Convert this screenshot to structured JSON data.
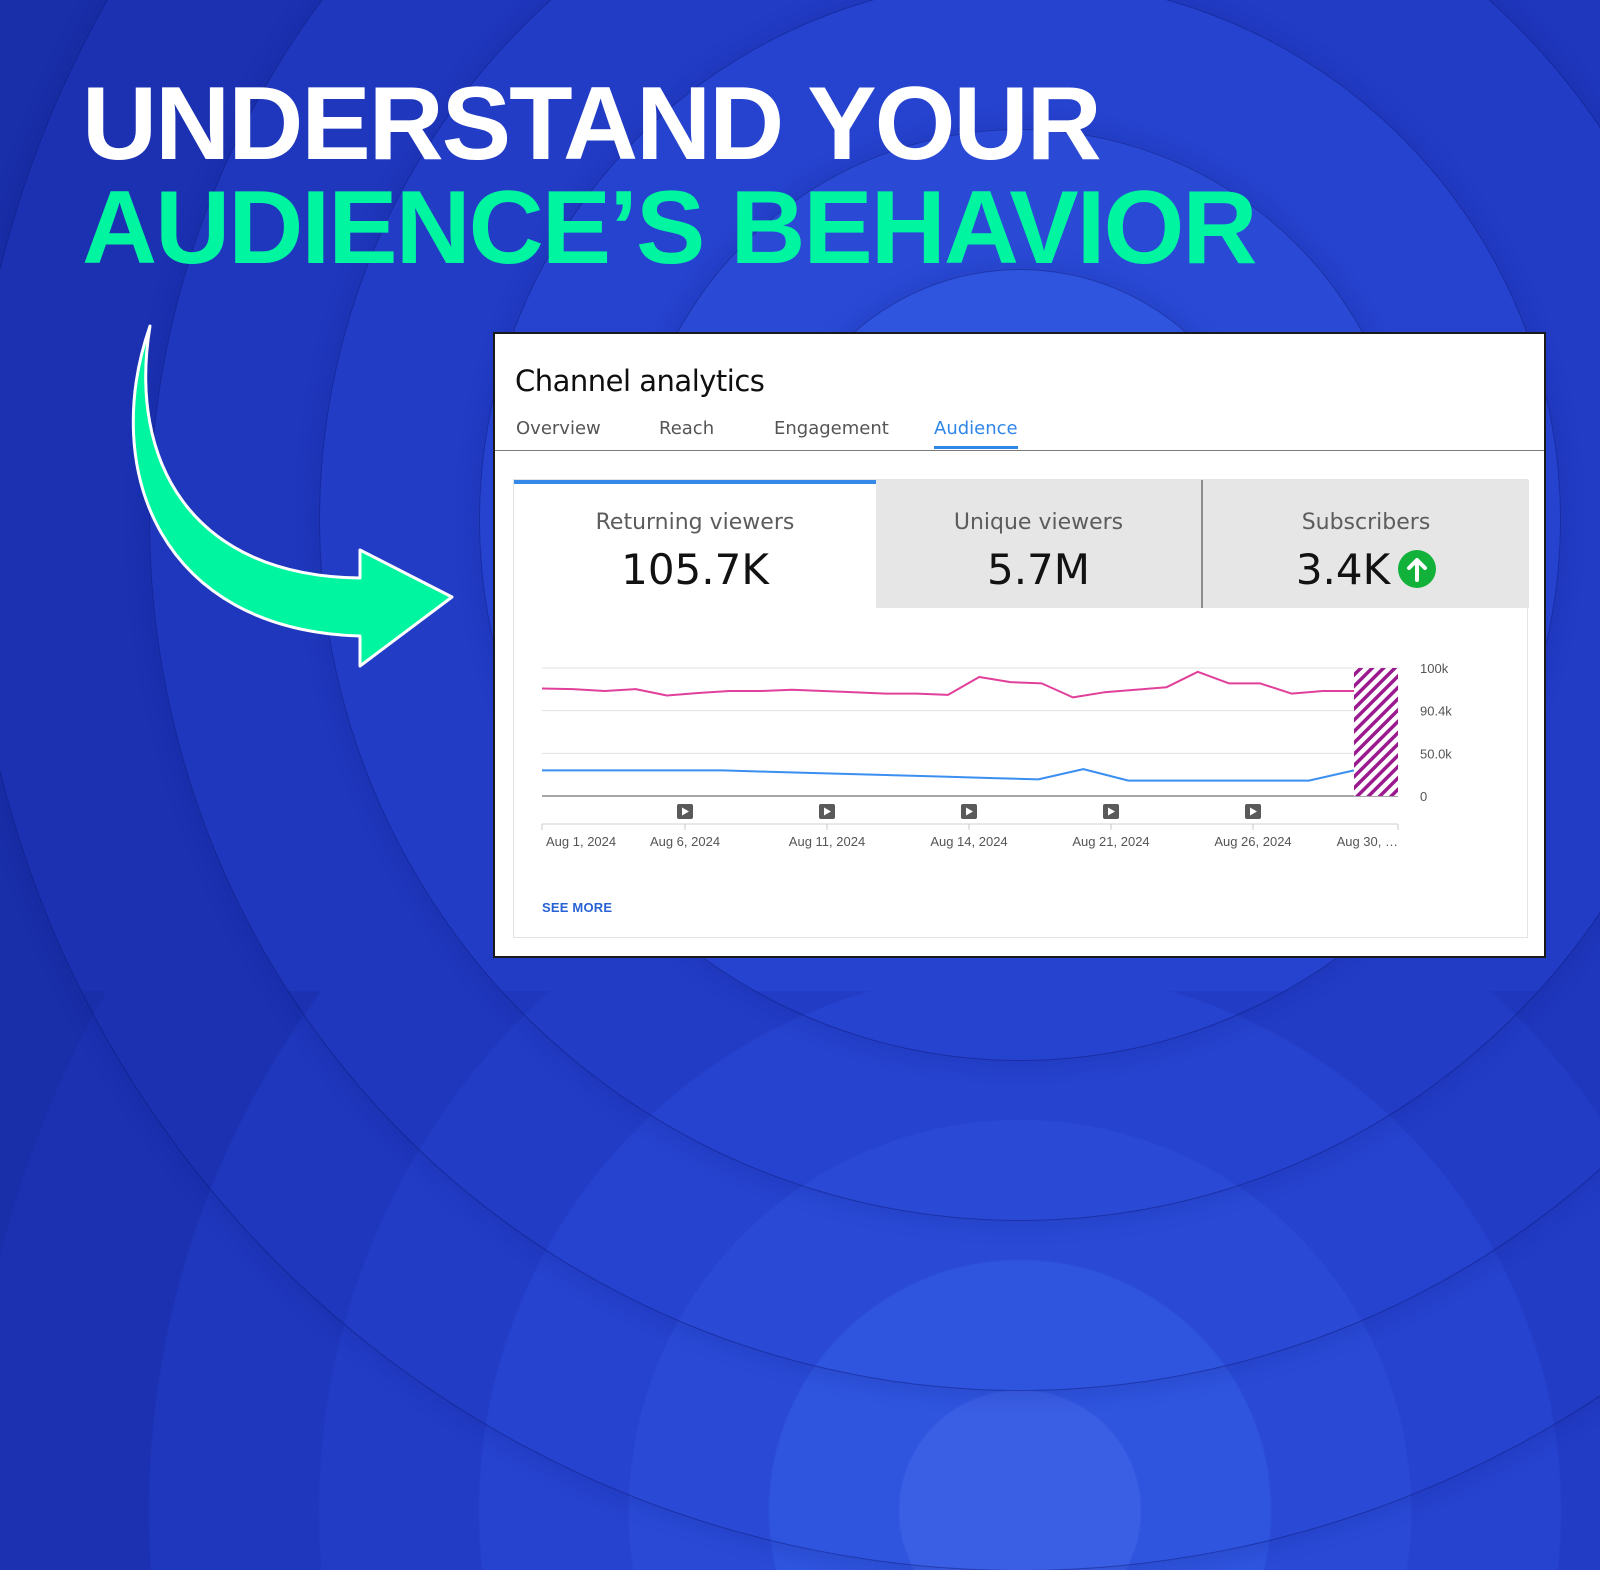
{
  "headline": {
    "line1": "UNDERSTAND YOUR",
    "line2": "AUDIENCE’S BEHAVIOR"
  },
  "colors": {
    "background": "#2643cf",
    "headline_primary": "#ffffff",
    "headline_accent": "#00f5a0",
    "arrow": "#00f5a0",
    "tab_active": "#2f86e8",
    "line_returning": "#e0409a",
    "line_unique": "#3b8ff0",
    "badge_up": "#12b23a"
  },
  "card": {
    "title": "Channel analytics",
    "tabs": [
      {
        "label": "Overview",
        "active": false
      },
      {
        "label": "Reach",
        "active": false
      },
      {
        "label": "Engagement",
        "active": false
      },
      {
        "label": "Audience",
        "active": true
      }
    ],
    "metrics": [
      {
        "label": "Returning viewers",
        "value": "105.7K",
        "selected": true
      },
      {
        "label": "Unique viewers",
        "value": "5.7M",
        "selected": false
      },
      {
        "label": "Subscribers",
        "value": "3.4K",
        "icon": "arrow-up-circle-icon",
        "selected": false
      }
    ],
    "see_more": "SEE MORE"
  },
  "chart_data": {
    "type": "line",
    "y_ticks": [
      "100k",
      "90.4k",
      "50.0k",
      "0"
    ],
    "ylim": [
      0,
      100
    ],
    "x_ticks": [
      "Aug 1, 2024",
      "Aug 6, 2024",
      "Aug 11, 2024",
      "Aug 14, 2024",
      "Aug 21, 2024",
      "Aug 26, 2024",
      "Aug 30, …"
    ],
    "video_markers": 5,
    "series": [
      {
        "color": "#e0409a",
        "values": [
          84,
          83.5,
          82,
          83.5,
          78.5,
          80.5,
          82,
          82,
          83,
          82,
          81,
          80,
          80,
          79,
          93,
          89,
          88,
          77,
          81,
          83,
          85,
          97,
          88,
          88,
          80,
          82,
          82
        ]
      },
      {
        "color": "#3b8ff0",
        "values": [
          20,
          20,
          20,
          20,
          20,
          19,
          18,
          17,
          16,
          15,
          14,
          13,
          21,
          12,
          12,
          12,
          12,
          12,
          20
        ]
      }
    ],
    "grid": true
  }
}
